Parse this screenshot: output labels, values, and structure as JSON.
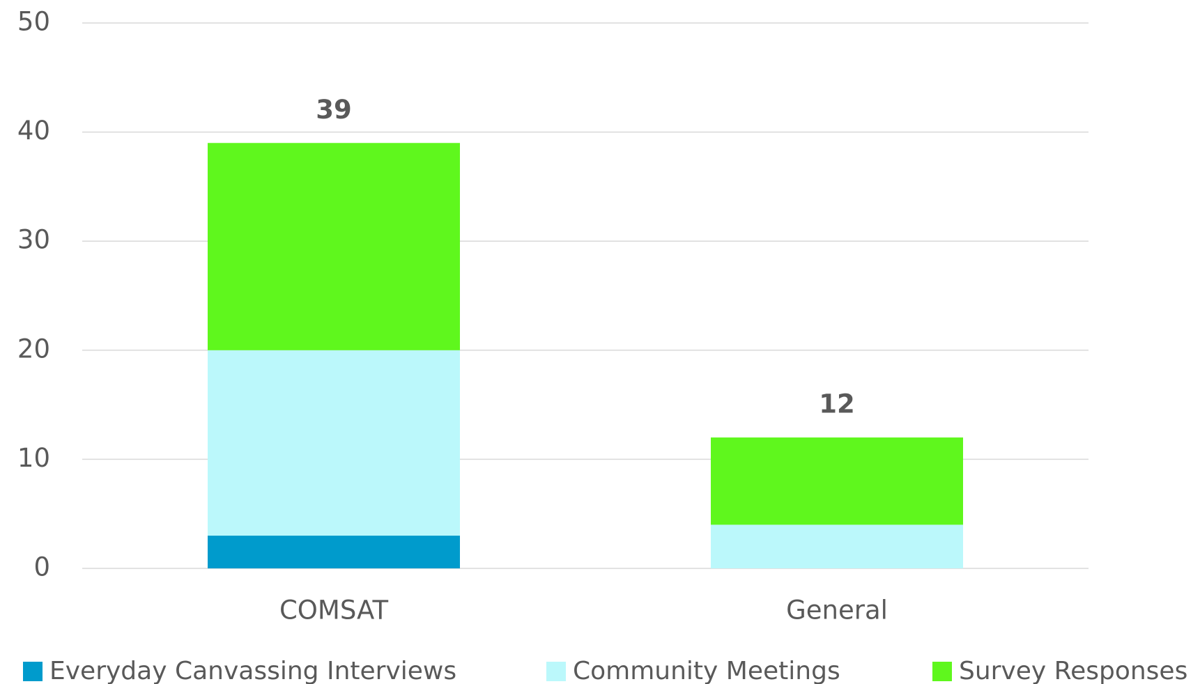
{
  "chart_data": {
    "type": "stacked_bar",
    "categories": [
      "COMSAT",
      "General"
    ],
    "series": [
      {
        "name": "Everyday Canvassing Interviews",
        "color": "#009bcc",
        "values": [
          3,
          0
        ]
      },
      {
        "name": "Community Meetings",
        "color": "#bbf8fb",
        "values": [
          17,
          4
        ]
      },
      {
        "name": "Survey Responses",
        "color": "#5ff71d",
        "values": [
          19,
          8
        ]
      }
    ],
    "total_labels": [
      39,
      12
    ],
    "ylim": [
      0,
      50
    ],
    "yticks": [
      0,
      10,
      20,
      30,
      40,
      50
    ],
    "grid": true,
    "legend": "bottom"
  }
}
